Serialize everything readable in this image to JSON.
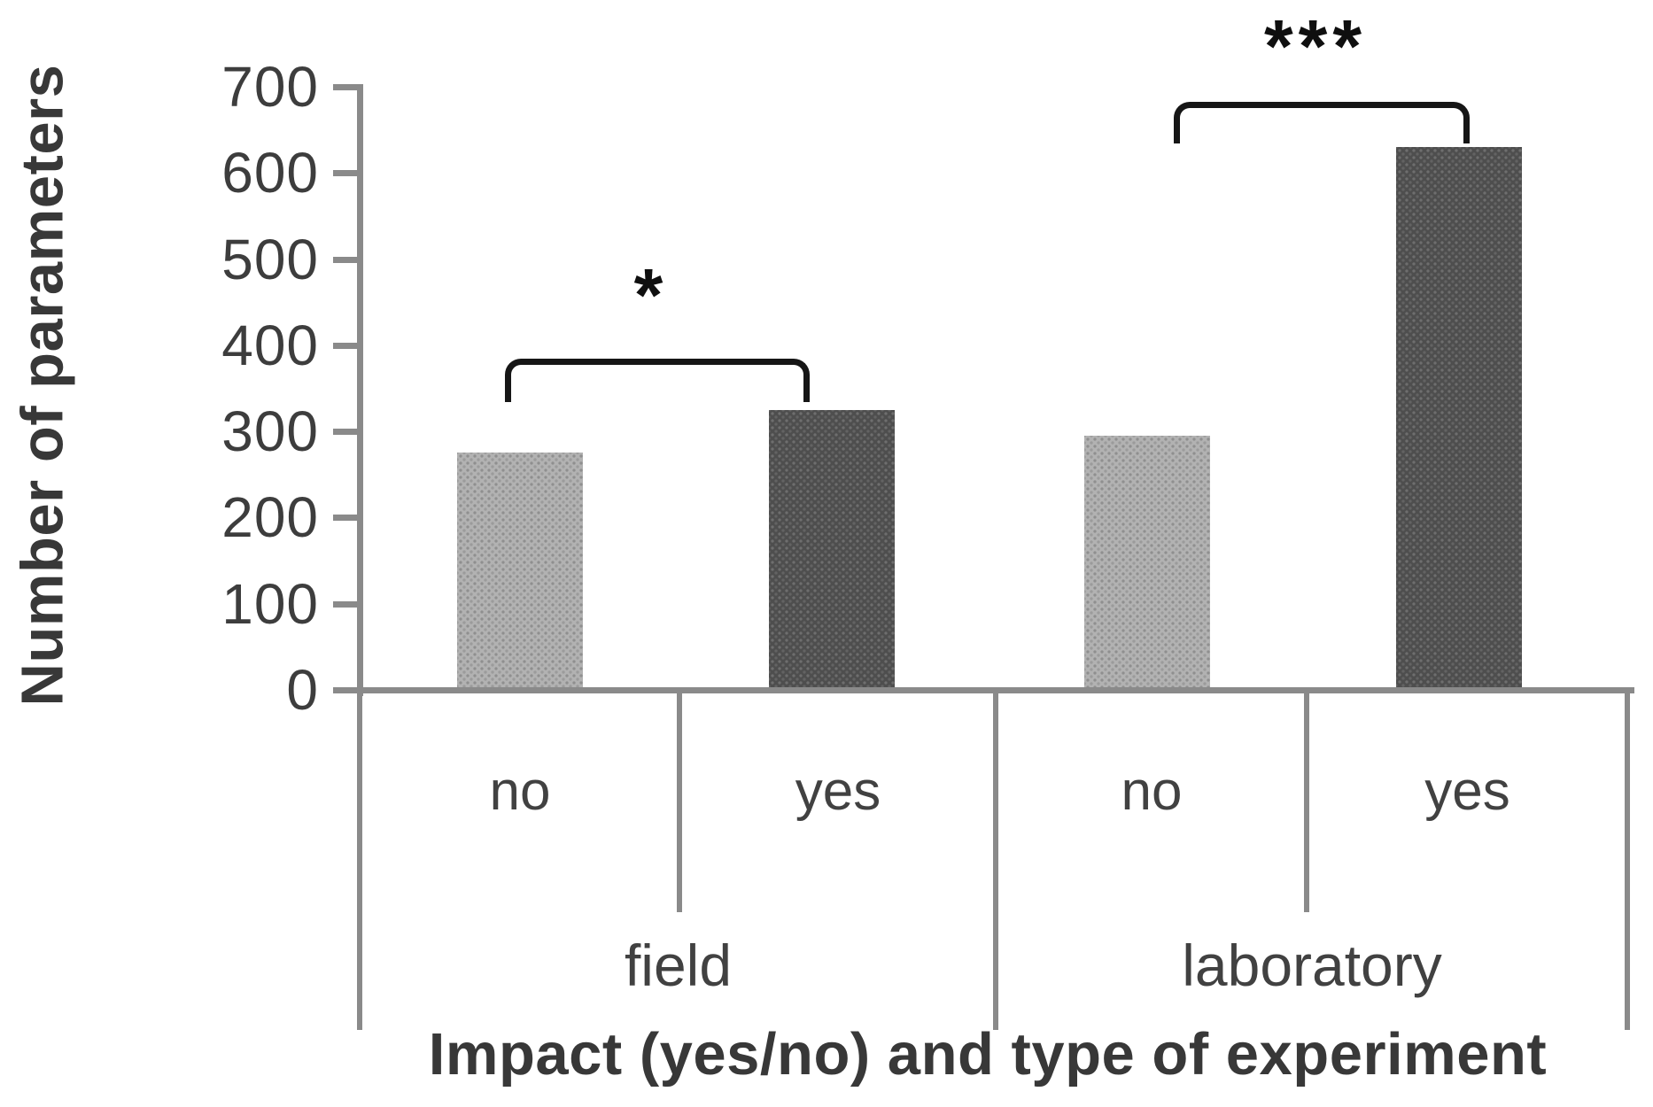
{
  "chart_data": {
    "type": "bar",
    "title": "",
    "ylabel": "Number of parameters",
    "xlabel": "Impact (yes/no) and type of experiment",
    "ylim": [
      0,
      700
    ],
    "yticks": [
      0,
      100,
      200,
      300,
      400,
      500,
      600,
      700
    ],
    "grid": false,
    "legend": false,
    "groups": [
      {
        "label": "field",
        "significance": "*",
        "bars": [
          {
            "impact": "no",
            "value": 275
          },
          {
            "impact": "yes",
            "value": 325
          }
        ]
      },
      {
        "label": "laboratory",
        "significance": "***",
        "bars": [
          {
            "impact": "no",
            "value": 295
          },
          {
            "impact": "yes",
            "value": 630
          }
        ]
      }
    ],
    "bar_colors": {
      "no": "#b2b2b2",
      "yes": "#4e4e4e"
    },
    "axis_color": "#8a8a8a",
    "annotation_color": "#161616"
  }
}
